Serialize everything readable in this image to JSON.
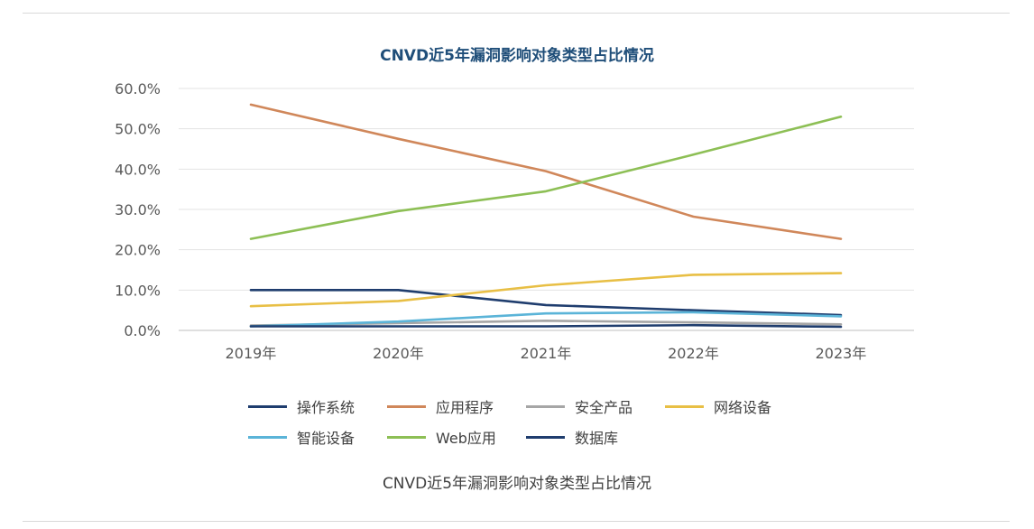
{
  "chart_data": {
    "type": "line",
    "title": "CNVD近5年漏洞影响对象类型占比情况",
    "caption": "CNVD近5年漏洞影响对象类型占比情况",
    "categories": [
      "2019年",
      "2020年",
      "2021年",
      "2022年",
      "2023年"
    ],
    "ylim": [
      0,
      60
    ],
    "yticks": [
      "0.0%",
      "10.0%",
      "20.0%",
      "30.0%",
      "40.0%",
      "50.0%",
      "60.0%"
    ],
    "grid": true,
    "legend_position": "bottom",
    "series": [
      {
        "name": "操作系统",
        "color": "#1f3d6e",
        "values": [
          10.0,
          10.0,
          6.3,
          5.0,
          3.8
        ]
      },
      {
        "name": "应用程序",
        "color": "#d0875a",
        "values": [
          56.0,
          47.5,
          39.5,
          28.2,
          22.7
        ]
      },
      {
        "name": "安全产品",
        "color": "#a6a6a6",
        "values": [
          1.2,
          1.8,
          2.4,
          2.0,
          1.5
        ]
      },
      {
        "name": "网络设备",
        "color": "#e8bf45",
        "values": [
          6.0,
          7.3,
          11.2,
          13.8,
          14.2
        ]
      },
      {
        "name": "智能设备",
        "color": "#5bb4d8",
        "values": [
          1.0,
          2.2,
          4.2,
          4.5,
          3.5
        ]
      },
      {
        "name": "Web应用",
        "color": "#8dbf55",
        "values": [
          22.7,
          29.6,
          34.5,
          43.6,
          53.0
        ]
      },
      {
        "name": "数据库",
        "color": "#1f3d6e",
        "values": [
          1.0,
          1.0,
          1.0,
          1.3,
          0.9
        ]
      }
    ]
  }
}
